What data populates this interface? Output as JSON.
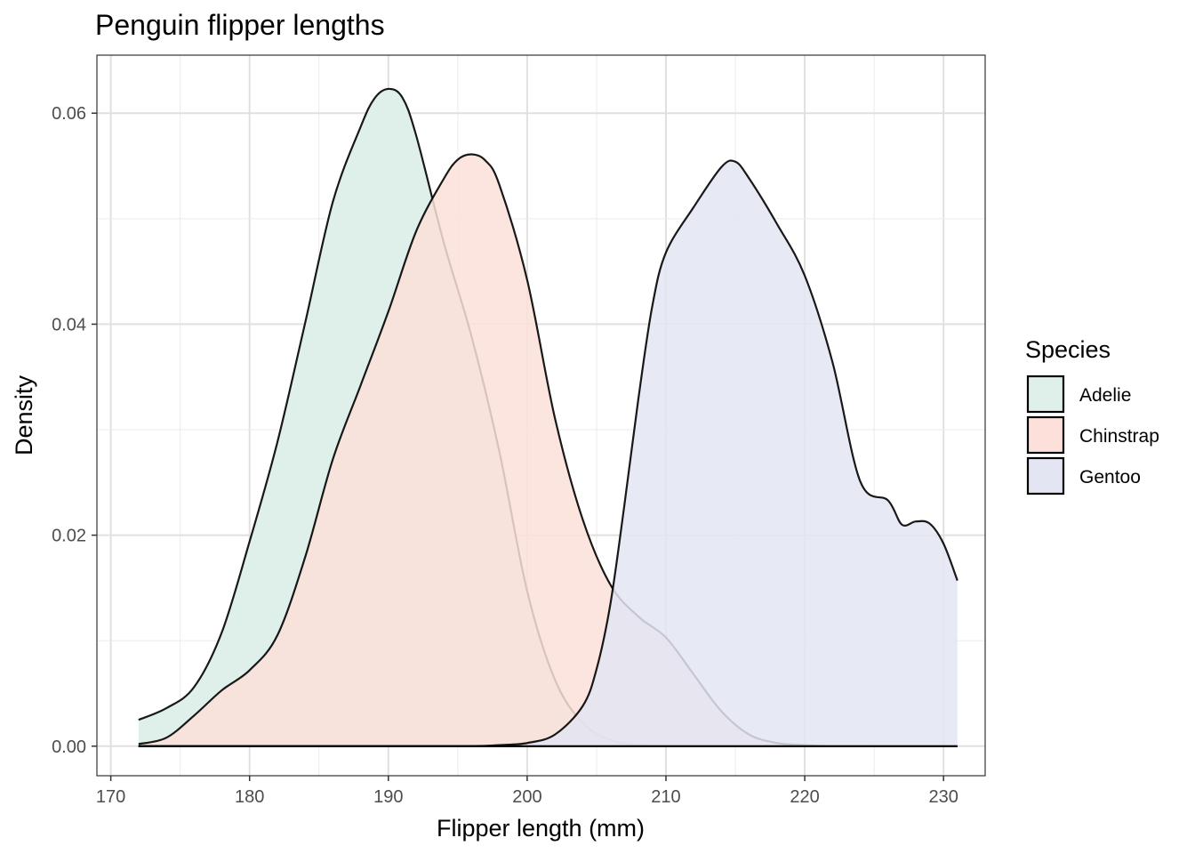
{
  "chart_data": {
    "type": "area",
    "title": "Penguin flipper lengths",
    "xlabel": "Flipper length (mm)",
    "ylabel": "Density",
    "xlim": [
      169,
      233
    ],
    "ylim": [
      -0.0028,
      0.0655
    ],
    "x_ticks": [
      170,
      180,
      190,
      200,
      210,
      220,
      230
    ],
    "y_ticks": [
      0.0,
      0.02,
      0.04,
      0.06
    ],
    "y_tick_labels": [
      "0.00",
      "0.02",
      "0.04",
      "0.06"
    ],
    "grid": true,
    "legend": {
      "title": "Species",
      "position": "right"
    },
    "series": [
      {
        "name": "Adelie",
        "fill": "#def0e9",
        "opacity": 1,
        "x": [
          172,
          174,
          176,
          178,
          180,
          182,
          184,
          186,
          188,
          189,
          190,
          191,
          192,
          194,
          196,
          198,
          200,
          202,
          204,
          206,
          208,
          210,
          212,
          214,
          216,
          218,
          220,
          222,
          224,
          226,
          228,
          230,
          231
        ],
        "y": [
          0.0025,
          0.0036,
          0.0056,
          0.0108,
          0.0194,
          0.0288,
          0.0401,
          0.0516,
          0.0587,
          0.0614,
          0.0623,
          0.0615,
          0.0579,
          0.0477,
          0.0388,
          0.0279,
          0.0147,
          0.0063,
          0.0022,
          0.0006,
          0.0001,
          0,
          0,
          0,
          0,
          0,
          0,
          0,
          0,
          0,
          0,
          0,
          0
        ]
      },
      {
        "name": "Chinstrap",
        "fill": "#fde0d9",
        "opacity": 0.85,
        "x": [
          172,
          174,
          176,
          178,
          180,
          182,
          184,
          186,
          188,
          190,
          192,
          194,
          195,
          196,
          197,
          198,
          200,
          202,
          204,
          206,
          208,
          210,
          212,
          214,
          216,
          218,
          220,
          222,
          224,
          226,
          228,
          230,
          231
        ],
        "y": [
          0.0002,
          0.0008,
          0.0029,
          0.0053,
          0.0072,
          0.0105,
          0.0179,
          0.0272,
          0.0342,
          0.0412,
          0.0488,
          0.0538,
          0.0556,
          0.0561,
          0.0555,
          0.0532,
          0.0442,
          0.0311,
          0.0215,
          0.0153,
          0.0123,
          0.0103,
          0.0068,
          0.0033,
          0.0011,
          0.0003,
          0.0001,
          0,
          0,
          0,
          0,
          0,
          0
        ]
      },
      {
        "name": "Gentoo",
        "fill": "#e3e5f2",
        "opacity": 0.85,
        "x": [
          172,
          190,
          196,
          198,
          200,
          202,
          204,
          205,
          206,
          207,
          208,
          209,
          210,
          212,
          214,
          215,
          216,
          218,
          220,
          222,
          224,
          226,
          227,
          228,
          229,
          230,
          231
        ],
        "y": [
          0,
          0,
          0,
          0.0001,
          0.0003,
          0.0011,
          0.0038,
          0.0073,
          0.0135,
          0.0228,
          0.0328,
          0.0416,
          0.0468,
          0.0511,
          0.0549,
          0.0554,
          0.0538,
          0.0495,
          0.0446,
          0.0364,
          0.0251,
          0.0233,
          0.021,
          0.0213,
          0.0211,
          0.0192,
          0.0157
        ]
      }
    ]
  }
}
